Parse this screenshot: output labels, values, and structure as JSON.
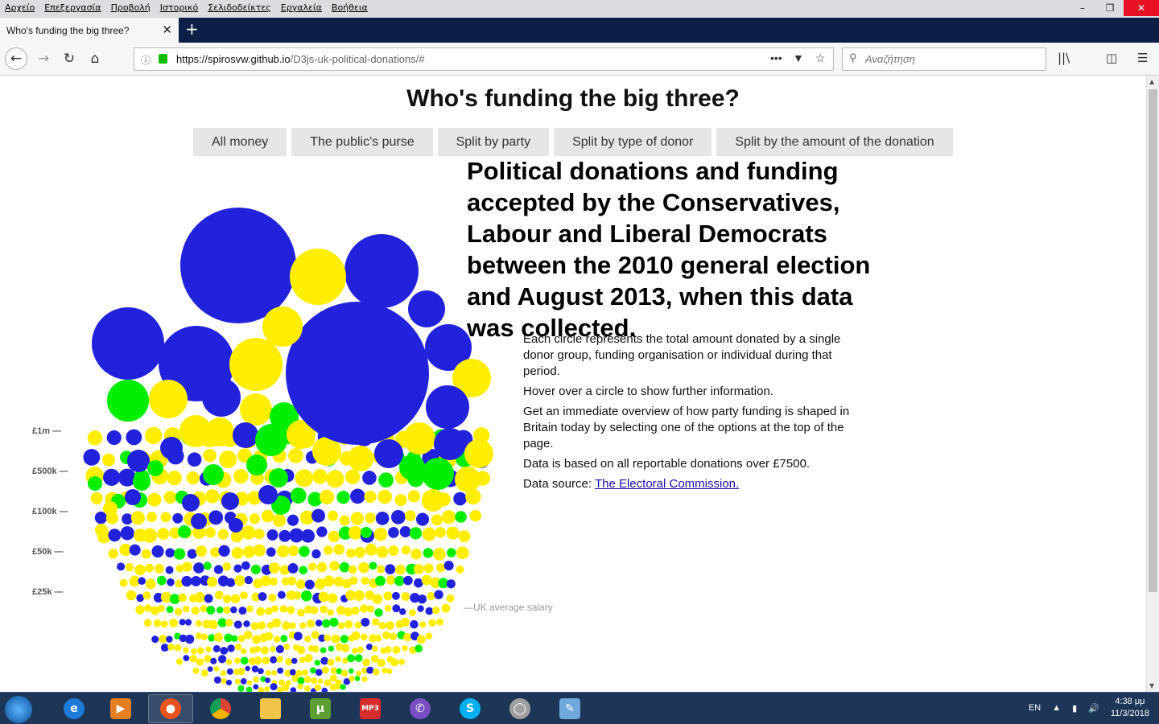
{
  "browser": {
    "menu": [
      "Αρχείο",
      "Επεξεργασία",
      "Προβολή",
      "Ιστορικό",
      "Σελιδοδείκτες",
      "Εργαλεία",
      "Βοήθεια"
    ],
    "tab_title": "Who's funding the big three?",
    "url_host": "https://spirosvw.github.io",
    "url_path": "/D3js-uk-political-donations/#",
    "search_placeholder": "Αναζήτηση"
  },
  "page": {
    "title": "Who's funding the big three?",
    "buttons": [
      "All money",
      "The public's purse",
      "Split by party",
      "Split by type of donor",
      "Split by the amount of the donation"
    ],
    "headline": "Political donations and funding accepted by the Conservatives, Labour and Liberal Democrats between the 2010 general election and August 2013, when this data was collected.",
    "desc1": "Each circle represents the total amount donated by a single donor group, funding organisation or individual during that period.",
    "desc2": "Hover over a circle to show further information.",
    "desc3": "Get an immediate overview of how party funding is shaped in Britain today by selecting one of the options at the top of the page.",
    "desc4": "Data is based on all reportable donations over £7500.",
    "source_prefix": "Data source: ",
    "source_link": "The Electoral Commission.",
    "scale_labels": [
      "£1m —",
      "£500k —",
      "£100k —",
      "£50k —",
      "£25k —"
    ],
    "avg_salary": "—UK average salary"
  },
  "colors": {
    "conservative": "#2222dd",
    "labour": "#ffee00",
    "libdem": "#00ee00"
  },
  "taskbar": {
    "lang": "EN",
    "time": "4:38 μμ",
    "date": "11/3/2018"
  }
}
